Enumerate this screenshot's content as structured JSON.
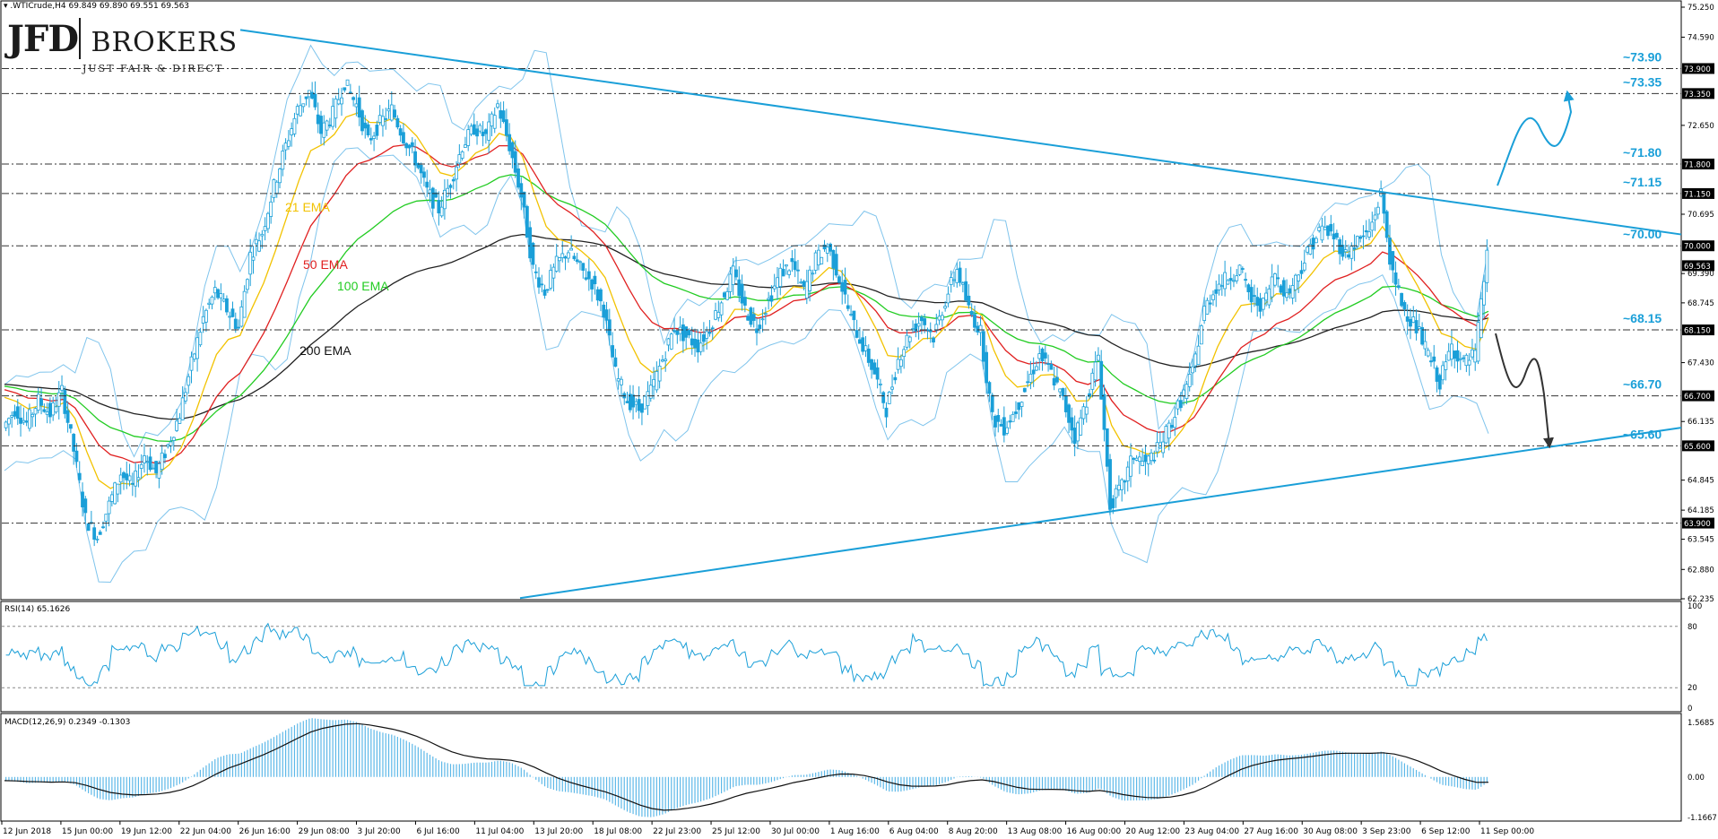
{
  "header": {
    "symbol_line": ".WTICrude,H4  69.849 69.890 69.551 69.563"
  },
  "logo": {
    "mark": "JFD",
    "name": "BROKERS",
    "tagline": "JUST FAIR & DIRECT"
  },
  "colors": {
    "trendline": "#1a9fd8",
    "ema21": "#f2c200",
    "ema50": "#e02020",
    "ema100": "#22cc22",
    "ema200": "#222222",
    "bollinger": "#7fc4ec",
    "candles": "#1a9fd8",
    "rsi": "#1a9fd8",
    "macd_hist": "#5db8e8",
    "macd_signal": "#111111",
    "annotation_arrow_up": "#1a9fd8",
    "annotation_arrow_down": "#333333",
    "level_text": "#1a9fd8"
  },
  "chart_data": [
    {
      "type": "candlestick",
      "title": ".WTICrude,H4",
      "ylim": [
        62.235,
        75.25
      ],
      "y_ticks": [
        "75.250",
        "74.590",
        "73.900",
        "73.350",
        "72.650",
        "71.800",
        "71.150",
        "70.695",
        "70.000",
        "69.563",
        "69.390",
        "68.745",
        "68.150",
        "67.430",
        "66.700",
        "66.135",
        "65.600",
        "64.845",
        "64.185",
        "63.545",
        "62.880",
        "62.235"
      ],
      "x_ticks": [
        "12 Jun 2018",
        "15 Jun 00:00",
        "19 Jun 12:00",
        "22 Jun 04:00",
        "26 Jun 16:00",
        "29 Jun 08:00",
        "3 Jul 20:00",
        "6 Jul 16:00",
        "11 Jul 04:00",
        "13 Jul 20:00",
        "18 Jul 08:00",
        "22 Jul 23:00",
        "25 Jul 12:00",
        "30 Jul 00:00",
        "1 Aug 16:00",
        "6 Aug 04:00",
        "8 Aug 20:00",
        "13 Aug 08:00",
        "16 Aug 00:00",
        "20 Aug 12:00",
        "23 Aug 04:00",
        "27 Aug 16:00",
        "30 Aug 08:00",
        "3 Sep 23:00",
        "6 Sep 12:00",
        "11 Sep 00:00"
      ],
      "price_series": [
        66.0,
        66.4,
        66.1,
        66.6,
        66.3,
        66.8,
        65.5,
        64.0,
        63.6,
        64.3,
        65.0,
        64.7,
        65.4,
        65.0,
        65.6,
        66.3,
        67.4,
        68.4,
        69.0,
        68.6,
        68.2,
        69.8,
        70.3,
        71.3,
        72.2,
        73.0,
        73.4,
        72.5,
        72.9,
        73.6,
        73.1,
        72.3,
        72.7,
        73.0,
        72.4,
        71.9,
        71.2,
        70.8,
        71.4,
        72.2,
        72.6,
        72.4,
        73.1,
        72.2,
        71.1,
        69.5,
        69.0,
        69.6,
        69.9,
        69.5,
        69.2,
        68.6,
        67.2,
        66.6,
        66.4,
        66.8,
        67.5,
        68.2,
        68.0,
        67.8,
        68.2,
        68.8,
        69.4,
        68.6,
        68.2,
        68.8,
        69.4,
        69.6,
        69.0,
        69.7,
        70.0,
        69.3,
        68.4,
        67.8,
        67.2,
        66.4,
        67.5,
        68.1,
        68.4,
        68.0,
        68.8,
        69.5,
        68.6,
        68.1,
        66.2,
        66.0,
        66.4,
        67.0,
        67.6,
        67.2,
        66.6,
        65.8,
        66.6,
        67.6,
        64.3,
        64.7,
        65.4,
        65.2,
        65.5,
        66.0,
        66.6,
        67.2,
        68.6,
        69.1,
        69.3,
        69.5,
        68.8,
        68.7,
        69.4,
        68.9,
        69.4,
        70.0,
        70.4,
        70.2,
        69.8,
        70.1,
        70.3,
        71.15,
        69.3,
        68.6,
        68.2,
        67.6,
        67.0,
        67.8,
        67.4,
        67.6,
        69.8
      ]
    },
    {
      "type": "line",
      "title": "RSI(14) 65.1626",
      "ylim": [
        0,
        100
      ],
      "y_ticks": [
        "100",
        "80",
        "20",
        "0"
      ],
      "levels": [
        80,
        20
      ]
    },
    {
      "type": "bar",
      "title": "MACD(12,26,9) 0.2349 -0.1303",
      "ylim": [
        -1.1667,
        1.5685
      ],
      "y_ticks": [
        "1.5685",
        "0.00",
        "-1.1667"
      ]
    }
  ],
  "levels": [
    {
      "price": 73.9,
      "axis_label": "73.900",
      "text": "~73.90"
    },
    {
      "price": 73.35,
      "axis_label": "73.350",
      "text": "~73.35"
    },
    {
      "price": 71.8,
      "axis_label": "71.800",
      "text": "~71.80"
    },
    {
      "price": 71.15,
      "axis_label": "71.150",
      "text": "~71.15"
    },
    {
      "price": 70.0,
      "axis_label": "70.000",
      "text": "~70.00"
    },
    {
      "price": 68.15,
      "axis_label": "68.150",
      "text": "~68.15"
    },
    {
      "price": 66.7,
      "axis_label": "66.700",
      "text": "~66.70"
    },
    {
      "price": 65.6,
      "axis_label": "65.600",
      "text": "~65.60"
    },
    {
      "price": 63.9,
      "axis_label": "63.900",
      "text": ""
    }
  ],
  "current_price_label": "69.563",
  "ema_labels": {
    "ema21": "21 EMA",
    "ema50": "50 EMA",
    "ema100": "100 EMA",
    "ema200": "200 EMA"
  },
  "panels": {
    "rsi_title": "RSI(14) 65.1626",
    "macd_title": "MACD(12,26,9) 0.2349 -0.1303"
  }
}
